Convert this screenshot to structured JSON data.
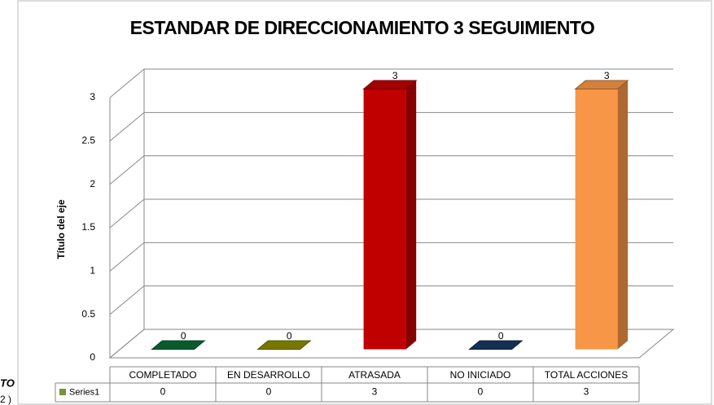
{
  "chart_data": {
    "type": "bar3d",
    "title": "ESTANDAR DE DIRECCIONAMIENTO 3 SEGUIMIENTO",
    "y_label": "Título del eje",
    "categories": [
      "COMPLETADO",
      "EN DESARROLLO",
      "ATRASADA",
      "NO INICIADO",
      "TOTAL ACCIONES"
    ],
    "series": [
      {
        "name": "Series1",
        "color": "#77933c",
        "values": [
          0,
          0,
          3,
          0,
          3
        ]
      }
    ],
    "colors": [
      "#0b6b35",
      "#8c8c00",
      "#c00000",
      "#17375e",
      "#f79646"
    ],
    "ylim": [
      0,
      3
    ],
    "yticks": [
      0,
      0.5,
      1,
      1.5,
      2,
      2.5,
      3
    ],
    "grid": true,
    "background_text": [
      "TO",
      "2 )"
    ]
  }
}
